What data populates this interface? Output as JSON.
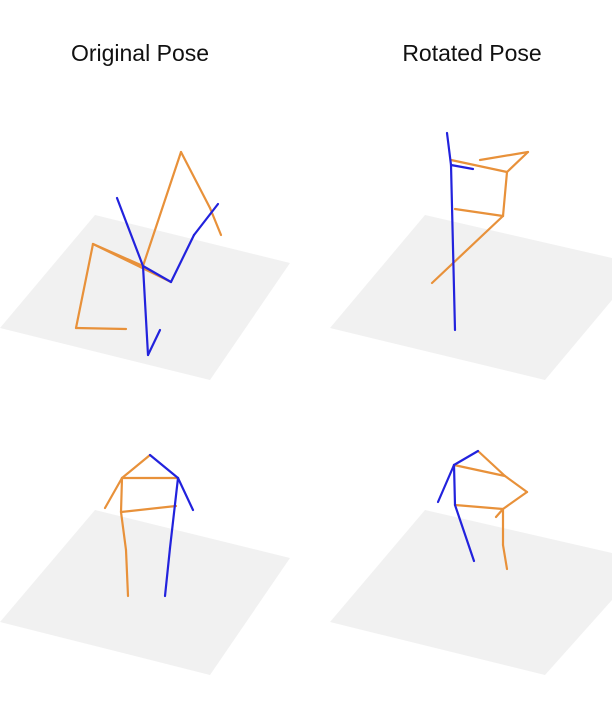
{
  "titles": {
    "left": "Original Pose",
    "right": "Rotated Pose"
  },
  "colors": {
    "left_limbs": "#2222dd",
    "right_limbs": "#e8913a",
    "floor": "#f1f1f1"
  },
  "panels": [
    {
      "name": "original-pose-top",
      "left_segments": [
        [
          [
            117,
            198
          ],
          [
            143,
            266
          ]
        ],
        [
          [
            143,
            266
          ],
          [
            148,
            355
          ]
        ],
        [
          [
            148,
            355
          ],
          [
            160,
            330
          ]
        ],
        [
          [
            143,
            266
          ],
          [
            171,
            282
          ]
        ],
        [
          [
            171,
            282
          ],
          [
            194,
            235
          ]
        ],
        [
          [
            194,
            235
          ],
          [
            218,
            204
          ]
        ]
      ],
      "right_segments": [
        [
          [
            93,
            244
          ],
          [
            76,
            328
          ]
        ],
        [
          [
            76,
            328
          ],
          [
            126,
            329
          ]
        ],
        [
          [
            93,
            244
          ],
          [
            143,
            266
          ]
        ],
        [
          [
            143,
            266
          ],
          [
            181,
            152
          ]
        ],
        [
          [
            181,
            152
          ],
          [
            210,
            208
          ]
        ],
        [
          [
            210,
            208
          ],
          [
            221,
            235
          ]
        ],
        [
          [
            93,
            244
          ],
          [
            171,
            282
          ]
        ]
      ]
    },
    {
      "name": "rotated-pose-top",
      "left_segments": [
        [
          [
            447,
            133
          ],
          [
            451,
            165
          ]
        ],
        [
          [
            451,
            165
          ],
          [
            455,
            330
          ]
        ],
        [
          [
            451,
            165
          ],
          [
            473,
            169
          ]
        ]
      ],
      "right_segments": [
        [
          [
            451,
            160
          ],
          [
            507,
            172
          ]
        ],
        [
          [
            507,
            172
          ],
          [
            528,
            152
          ]
        ],
        [
          [
            528,
            152
          ],
          [
            480,
            160
          ]
        ],
        [
          [
            507,
            172
          ],
          [
            503,
            216
          ]
        ],
        [
          [
            503,
            216
          ],
          [
            455,
            209
          ]
        ],
        [
          [
            503,
            216
          ],
          [
            432,
            283
          ]
        ]
      ]
    },
    {
      "name": "original-pose-bottom",
      "left_segments": [
        [
          [
            150,
            455
          ],
          [
            178,
            478
          ]
        ],
        [
          [
            178,
            478
          ],
          [
            193,
            510
          ]
        ],
        [
          [
            178,
            478
          ],
          [
            170,
            548
          ]
        ],
        [
          [
            170,
            548
          ],
          [
            165,
            596
          ]
        ]
      ],
      "right_segments": [
        [
          [
            150,
            455
          ],
          [
            122,
            478
          ]
        ],
        [
          [
            122,
            478
          ],
          [
            105,
            508
          ]
        ],
        [
          [
            122,
            478
          ],
          [
            178,
            478
          ]
        ],
        [
          [
            122,
            478
          ],
          [
            121,
            512
          ]
        ],
        [
          [
            121,
            512
          ],
          [
            176,
            506
          ]
        ],
        [
          [
            121,
            512
          ],
          [
            126,
            550
          ]
        ],
        [
          [
            126,
            550
          ],
          [
            128,
            596
          ]
        ]
      ]
    },
    {
      "name": "rotated-pose-bottom",
      "left_segments": [
        [
          [
            478,
            451
          ],
          [
            454,
            465
          ]
        ],
        [
          [
            454,
            465
          ],
          [
            438,
            502
          ]
        ],
        [
          [
            454,
            465
          ],
          [
            455,
            505
          ]
        ],
        [
          [
            455,
            505
          ],
          [
            474,
            561
          ]
        ]
      ],
      "right_segments": [
        [
          [
            478,
            451
          ],
          [
            505,
            476
          ]
        ],
        [
          [
            505,
            476
          ],
          [
            454,
            465
          ]
        ],
        [
          [
            505,
            476
          ],
          [
            527,
            492
          ]
        ],
        [
          [
            527,
            492
          ],
          [
            503,
            509
          ]
        ],
        [
          [
            503,
            509
          ],
          [
            455,
            505
          ]
        ],
        [
          [
            503,
            509
          ],
          [
            496,
            517
          ]
        ],
        [
          [
            503,
            509
          ],
          [
            503,
            545
          ]
        ],
        [
          [
            503,
            545
          ],
          [
            507,
            569
          ]
        ]
      ]
    }
  ]
}
